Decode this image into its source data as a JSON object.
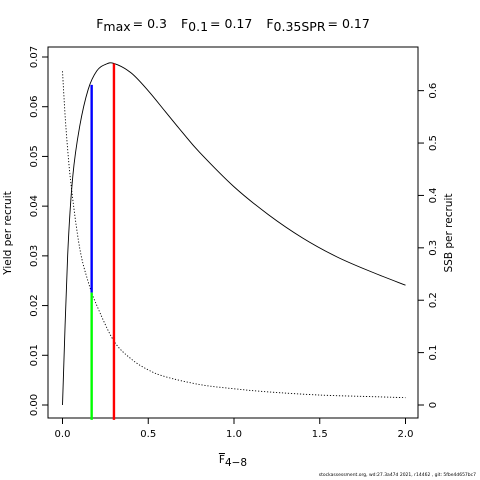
{
  "title": {
    "parts": [
      {
        "base": "F",
        "sub": "max",
        "value": "= 0.3"
      },
      {
        "base": "F",
        "sub": "0.1",
        "value": "= 0.17"
      },
      {
        "base": "F",
        "sub": "0.35SPR",
        "value": "= 0.17"
      }
    ]
  },
  "footer": "stockassessment.org, wd:27.3a47d 2021, r14462 , git: 5fbe4d657bc7",
  "chart_data": {
    "type": "line",
    "xlabel": {
      "base": "F",
      "sub": "4−8"
    },
    "ylabel_left": "Yield per recruit",
    "ylabel_right": "SSB per recruit",
    "xlim": [
      0,
      2
    ],
    "ylim_left": [
      0,
      0.07
    ],
    "ylim_right": [
      0,
      0.65
    ],
    "x_ticks": [
      "0.0",
      "0.5",
      "1.0",
      "1.5",
      "2.0"
    ],
    "y_left_ticks": [
      "0.00",
      "0.01",
      "0.02",
      "0.03",
      "0.04",
      "0.05",
      "0.06",
      "0.07"
    ],
    "y_right_ticks": [
      "0",
      "0.1",
      "0.2",
      "0.3",
      "0.4",
      "0.5",
      "0.6"
    ],
    "series": [
      {
        "style": "solid",
        "axis": "left",
        "x": [
          0,
          0.03,
          0.06,
          0.1,
          0.15,
          0.2,
          0.25,
          0.3,
          0.4,
          0.5,
          0.6,
          0.7,
          0.8,
          1.0,
          1.2,
          1.4,
          1.6,
          1.8,
          2.0
        ],
        "y": [
          0,
          0.03,
          0.046,
          0.056,
          0.0635,
          0.0672,
          0.0685,
          0.0687,
          0.0668,
          0.0632,
          0.059,
          0.0548,
          0.0508,
          0.0439,
          0.0383,
          0.0336,
          0.0298,
          0.0268,
          0.0241
        ]
      },
      {
        "style": "dotted",
        "axis": "right",
        "x": [
          0,
          0.02,
          0.05,
          0.1,
          0.15,
          0.2,
          0.3,
          0.4,
          0.5,
          0.6,
          0.8,
          1.0,
          1.2,
          1.5,
          1.8,
          2.0
        ],
        "y": [
          0.637,
          0.53,
          0.42,
          0.3,
          0.235,
          0.19,
          0.122,
          0.088,
          0.067,
          0.054,
          0.039,
          0.031,
          0.025,
          0.019,
          0.016,
          0.014
        ]
      }
    ],
    "reference_lines": [
      {
        "color": "#0000ff",
        "axis": "left",
        "x": 0.17,
        "y_from": 0.0226,
        "y_to": 0.0644
      },
      {
        "color": "#00ff00",
        "axis": "left",
        "x": 0.17,
        "y_from": -0.003,
        "y_to": 0.0226
      },
      {
        "color": "#ff0000",
        "axis": "left",
        "x": 0.3,
        "y_from": -0.003,
        "y_to": 0.0687
      }
    ]
  }
}
